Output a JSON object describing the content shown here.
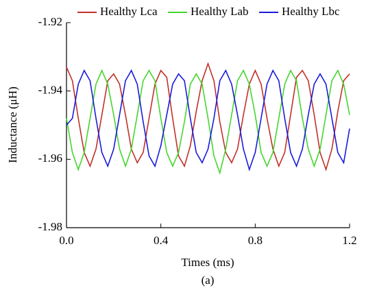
{
  "chart_data": {
    "type": "line",
    "x_label": "Times (ms)",
    "y_label": "Inductance (μH)",
    "caption": "(a)",
    "xlim": [
      0,
      1.2
    ],
    "xticks": [
      {
        "value": 0,
        "label": "0.0"
      },
      0.4,
      0.8,
      1.2
    ],
    "ylim": [
      -1.98,
      -1.92
    ],
    "yticks": [
      -1.98,
      -1.96,
      -1.94,
      -1.92
    ],
    "legend": "top",
    "x": [
      0,
      0.025,
      0.05,
      0.075,
      0.1,
      0.125,
      0.15,
      0.175,
      0.2,
      0.225,
      0.25,
      0.275,
      0.3,
      0.325,
      0.35,
      0.375,
      0.4,
      0.425,
      0.45,
      0.475,
      0.5,
      0.525,
      0.55,
      0.575,
      0.6,
      0.625,
      0.65,
      0.675,
      0.7,
      0.725,
      0.75,
      0.775,
      0.8,
      0.825,
      0.85,
      0.875,
      0.9,
      0.925,
      0.95,
      0.975,
      1.0,
      1.025,
      1.05,
      1.075,
      1.1,
      1.125,
      1.15,
      1.175,
      1.2
    ],
    "series": [
      {
        "name": "Healthy Lca",
        "color": "#c0302a",
        "values": [
          -1.933,
          -1.937,
          -1.948,
          -1.958,
          -1.962,
          -1.957,
          -1.947,
          -1.937,
          -1.935,
          -1.938,
          -1.947,
          -1.957,
          -1.961,
          -1.958,
          -1.948,
          -1.938,
          -1.934,
          -1.936,
          -1.948,
          -1.959,
          -1.962,
          -1.956,
          -1.946,
          -1.937,
          -1.932,
          -1.937,
          -1.949,
          -1.958,
          -1.961,
          -1.957,
          -1.947,
          -1.938,
          -1.934,
          -1.938,
          -1.948,
          -1.957,
          -1.962,
          -1.958,
          -1.947,
          -1.936,
          -1.934,
          -1.937,
          -1.947,
          -1.958,
          -1.963,
          -1.957,
          -1.946,
          -1.937,
          -1.935
        ]
      },
      {
        "name": "Healthy Lab",
        "color": "#44d62c",
        "values": [
          -1.948,
          -1.958,
          -1.963,
          -1.958,
          -1.948,
          -1.938,
          -1.934,
          -1.938,
          -1.947,
          -1.957,
          -1.962,
          -1.957,
          -1.947,
          -1.937,
          -1.934,
          -1.937,
          -1.948,
          -1.958,
          -1.962,
          -1.958,
          -1.949,
          -1.938,
          -1.935,
          -1.938,
          -1.948,
          -1.959,
          -1.964,
          -1.957,
          -1.947,
          -1.937,
          -1.934,
          -1.938,
          -1.947,
          -1.958,
          -1.962,
          -1.958,
          -1.948,
          -1.938,
          -1.934,
          -1.937,
          -1.948,
          -1.957,
          -1.962,
          -1.957,
          -1.947,
          -1.937,
          -1.934,
          -1.938,
          -1.947
        ]
      },
      {
        "name": "Healthy Lbc",
        "color": "#1a1adb",
        "values": [
          -1.95,
          -1.948,
          -1.938,
          -1.934,
          -1.937,
          -1.948,
          -1.958,
          -1.962,
          -1.957,
          -1.947,
          -1.937,
          -1.934,
          -1.938,
          -1.949,
          -1.959,
          -1.962,
          -1.956,
          -1.947,
          -1.938,
          -1.935,
          -1.937,
          -1.948,
          -1.958,
          -1.961,
          -1.957,
          -1.948,
          -1.937,
          -1.934,
          -1.938,
          -1.947,
          -1.957,
          -1.963,
          -1.958,
          -1.948,
          -1.938,
          -1.934,
          -1.937,
          -1.948,
          -1.958,
          -1.962,
          -1.957,
          -1.947,
          -1.938,
          -1.935,
          -1.938,
          -1.948,
          -1.958,
          -1.961,
          -1.951
        ]
      }
    ]
  }
}
